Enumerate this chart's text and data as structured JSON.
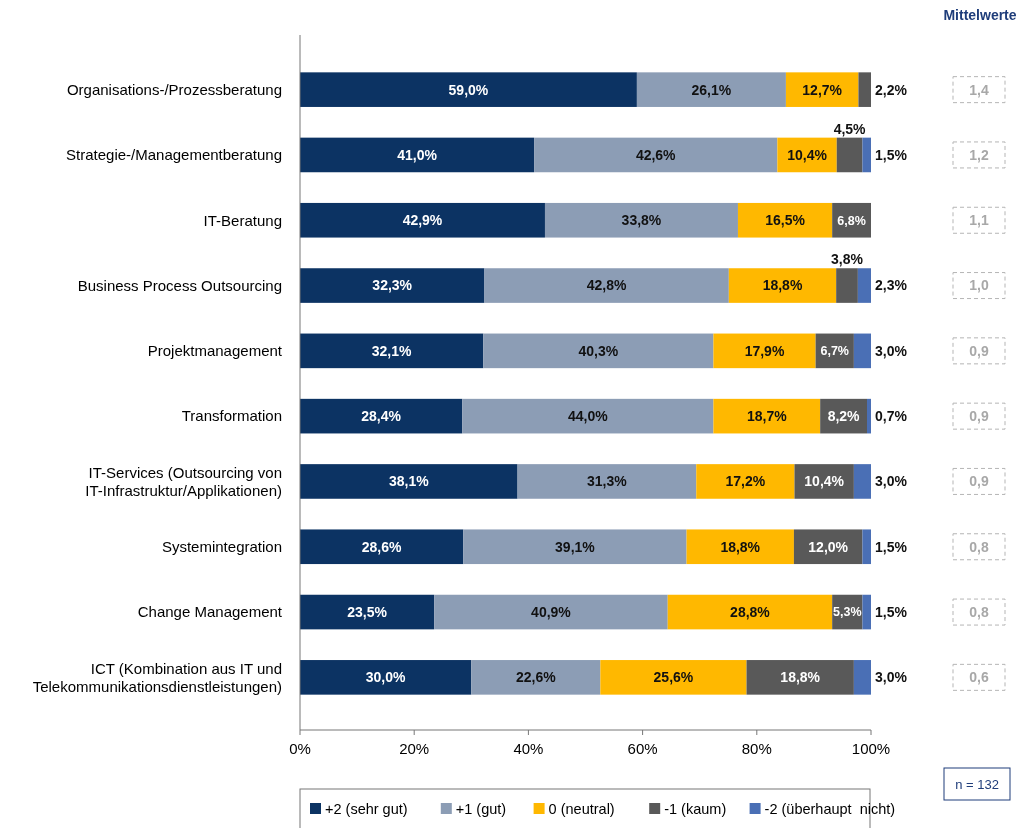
{
  "chart_data": {
    "type": "bar",
    "orientation": "horizontal",
    "stacked": true,
    "categories": [
      "Organisations-/Prozessberatung",
      "Strategie-/Managementberatung",
      "IT-Beratung",
      "Business Process Outsourcing",
      "Projektmanagement",
      "Transformation",
      "IT-Services (Outsourcing von\nIT-Infrastruktur/Applikationen)",
      "Systemintegration",
      "Change Management",
      "ICT (Kombination aus IT und\nTelekommunikationsdienstleistungen)"
    ],
    "series": [
      {
        "name": "+2 (sehr gut)",
        "color": "#0c3363",
        "values": [
          59.0,
          41.0,
          42.9,
          32.3,
          32.1,
          28.4,
          38.1,
          28.6,
          23.5,
          30.0
        ],
        "value_labels": [
          "59,0%",
          "41,0%",
          "42,9%",
          "32,3%",
          "32,1%",
          "28,4%",
          "38,1%",
          "28,6%",
          "23,5%",
          "30,0%"
        ]
      },
      {
        "name": "+1 (gut)",
        "color": "#8c9db5",
        "values": [
          26.1,
          42.6,
          33.8,
          42.8,
          40.3,
          44.0,
          31.3,
          39.1,
          40.9,
          22.6
        ],
        "value_labels": [
          "26,1%",
          "42,6%",
          "33,8%",
          "42,8%",
          "40,3%",
          "44,0%",
          "31,3%",
          "39,1%",
          "40,9%",
          "22,6%"
        ]
      },
      {
        "name": "0 (neutral)",
        "color": "#ffb800",
        "values": [
          12.7,
          10.4,
          16.5,
          18.8,
          17.9,
          18.7,
          17.2,
          18.8,
          28.8,
          25.6
        ],
        "value_labels": [
          "12,7%",
          "10,4%",
          "16,5%",
          "18,8%",
          "17,9%",
          "18,7%",
          "17,2%",
          "18,8%",
          "28,8%",
          "25,6%"
        ]
      },
      {
        "name": "-1 (kaum)",
        "color": "#595959",
        "values": [
          2.2,
          4.5,
          6.8,
          3.8,
          6.7,
          8.2,
          10.4,
          12.0,
          5.3,
          18.8
        ],
        "value_labels": [
          "2,2%",
          "4,5%",
          "6,8%",
          "3,8%",
          "6,7%",
          "8,2%",
          "10,4%",
          "12,0%",
          "5,3%",
          "18,8%"
        ]
      },
      {
        "name": "-2 (überhaupt  nicht)",
        "color": "#4a6fb5",
        "values": [
          null,
          1.5,
          null,
          2.3,
          3.0,
          0.7,
          3.0,
          1.5,
          1.5,
          3.0
        ],
        "value_labels": [
          null,
          "1,5%",
          null,
          "2,3%",
          "3,0%",
          "0,7%",
          "3,0%",
          "1,5%",
          "1,5%",
          "3,0%"
        ]
      }
    ],
    "xlim": [
      0,
      100
    ],
    "xticks": [
      {
        "value": 0,
        "label": "0%"
      },
      {
        "value": 20,
        "label": "20%"
      },
      {
        "value": 40,
        "label": "40%"
      },
      {
        "value": 60,
        "label": "60%"
      },
      {
        "value": 80,
        "label": "80%"
      },
      {
        "value": 100,
        "label": "100%"
      }
    ],
    "legend": "bottom",
    "annotations": [
      "Mittelwerte",
      "1,4",
      "1,2",
      "1,1",
      "1,0",
      "0,9",
      "0,9",
      "0,9",
      "0,8",
      "0,8",
      "0,6",
      "n = 132"
    ]
  }
}
